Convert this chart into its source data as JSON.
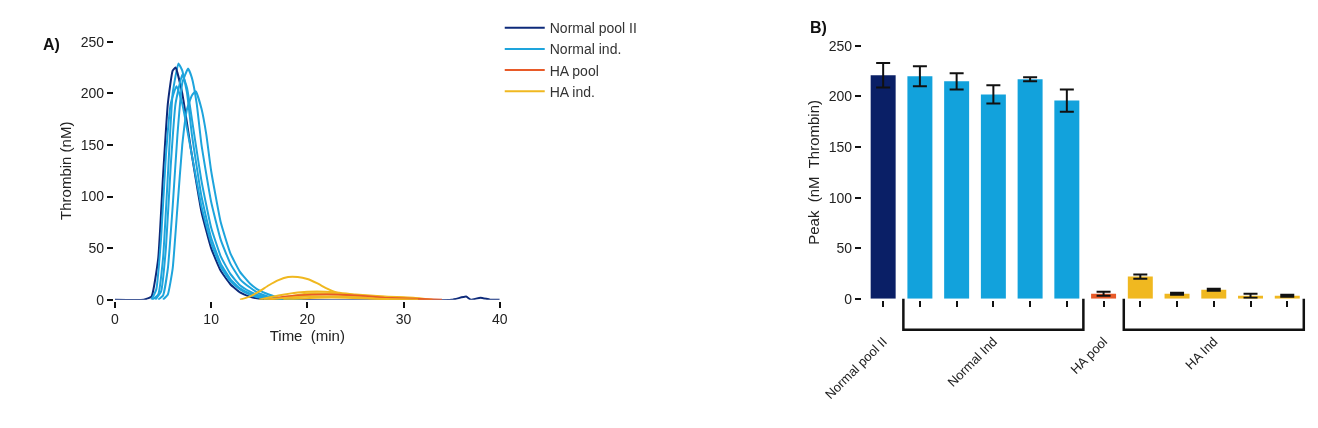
{
  "chart_data": [
    {
      "type": "line",
      "title": "A)",
      "xlabel": "Time  (min)",
      "ylabel": "Thrombin (nM)",
      "xlim": [
        0,
        40
      ],
      "xticks": [
        0,
        10,
        20,
        30,
        40
      ],
      "ylim": [
        0,
        250
      ],
      "yticks": [
        0,
        50,
        100,
        150,
        200,
        250
      ],
      "legend": "right",
      "series": [
        {
          "name": "Normal pool II",
          "color": "#0d2a7a",
          "x": [
            0,
            3,
            3.8,
            4.5,
            5,
            5.5,
            6,
            6.3,
            7,
            8,
            9,
            10,
            11,
            12,
            13,
            14,
            15,
            17,
            35,
            36.5,
            37,
            38,
            39,
            40
          ],
          "values": [
            0,
            0,
            3,
            40,
            120,
            190,
            222,
            225,
            200,
            140,
            85,
            50,
            28,
            15,
            7,
            3,
            1,
            0,
            0,
            3,
            0,
            2,
            0,
            0
          ]
        },
        {
          "name": "Normal ind.",
          "color": "#1ea4dc",
          "x": [
            3.9,
            4.5,
            5,
            5.5,
            6,
            6.6,
            7,
            7.5,
            8,
            9,
            10,
            11,
            12,
            13,
            14,
            15,
            16,
            18
          ],
          "values": [
            0,
            5,
            40,
            120,
            200,
            229,
            222,
            200,
            160,
            100,
            60,
            35,
            20,
            11,
            6,
            3,
            1,
            0
          ]
        },
        {
          "color": "#1ea4dc",
          "x": [
            4.5,
            5,
            5.5,
            6,
            6.5,
            7,
            7.6,
            8,
            8.5,
            9,
            10,
            11,
            12,
            13,
            14,
            15,
            16,
            17,
            19
          ],
          "values": [
            0,
            4,
            30,
            90,
            160,
            210,
            224,
            215,
            190,
            150,
            95,
            58,
            35,
            20,
            12,
            6,
            3,
            1,
            0
          ]
        },
        {
          "color": "#1ea4dc",
          "x": [
            5,
            5.5,
            6,
            6.5,
            7,
            7.5,
            8,
            8.4,
            9,
            9.5,
            10,
            11,
            12,
            13,
            14,
            15,
            16,
            17,
            19.5
          ],
          "values": [
            0,
            5,
            30,
            90,
            150,
            185,
            198,
            202,
            185,
            160,
            125,
            75,
            45,
            27,
            16,
            9,
            5,
            2,
            0
          ]
        },
        {
          "color": "#1ea4dc",
          "x": [
            4.2,
            4.8,
            5.3,
            5.8,
            6.3,
            7,
            7.5,
            8,
            9,
            10,
            11,
            12,
            13,
            14,
            15,
            16,
            17.5
          ],
          "values": [
            0,
            8,
            50,
            130,
            190,
            218,
            205,
            175,
            115,
            70,
            42,
            25,
            14,
            8,
            4,
            2,
            0
          ]
        },
        {
          "color": "#1ea4dc",
          "x": [
            3.8,
            4.3,
            4.8,
            5.3,
            5.8,
            6.4,
            7,
            8,
            9,
            10,
            11,
            12,
            13,
            14,
            15,
            16.5
          ],
          "values": [
            0,
            10,
            60,
            140,
            190,
            207,
            190,
            140,
            90,
            55,
            32,
            18,
            10,
            5,
            2,
            0
          ]
        },
        {
          "name": "HA pool",
          "color": "#e85a28",
          "x": [
            16,
            17,
            19,
            22,
            25,
            28,
            31,
            34
          ],
          "values": [
            0,
            2,
            4,
            5,
            4,
            2,
            1,
            0
          ]
        },
        {
          "name": "HA ind.",
          "color": "#f0b820",
          "x": [
            13,
            14,
            15,
            16,
            17,
            18,
            19,
            20,
            21,
            22,
            23,
            24,
            26,
            28,
            30.5
          ],
          "values": [
            0,
            3,
            8,
            14,
            19,
            22,
            22,
            20,
            16,
            11,
            7,
            4,
            2,
            1,
            0
          ]
        },
        {
          "color": "#f0b820",
          "x": [
            15,
            17,
            19,
            21,
            23,
            25,
            28,
            31,
            33
          ],
          "values": [
            0,
            4,
            7,
            8,
            7,
            5,
            3,
            2,
            0
          ]
        },
        {
          "color": "#f0b820",
          "x": [
            16,
            18,
            20,
            22,
            24,
            27,
            30,
            32
          ],
          "values": [
            0,
            3,
            6,
            6,
            5,
            3,
            2,
            0
          ]
        },
        {
          "color": "#f0b820",
          "x": [
            17.5,
            19,
            21,
            24,
            27,
            31.5
          ],
          "values": [
            0,
            1,
            2,
            2,
            1,
            0
          ]
        },
        {
          "color": "#f0b820",
          "x": [
            15.5,
            18,
            20,
            23,
            26,
            28.5
          ],
          "values": [
            0,
            2,
            3,
            3,
            2,
            0
          ]
        }
      ]
    },
    {
      "type": "bar",
      "title": "B)",
      "ylabel": "Peak  (nM  Thrombin)",
      "ylim": [
        0,
        250
      ],
      "yticks": [
        0,
        50,
        100,
        150,
        200,
        250
      ],
      "categories": [
        "Normal pool II",
        null,
        null,
        "Normal Ind",
        null,
        null,
        "HA pool",
        null,
        null,
        "HA Ind",
        null,
        null
      ],
      "values": [
        221,
        220,
        215,
        202,
        217,
        196,
        5,
        22,
        5,
        9,
        3,
        3
      ],
      "errors": [
        12,
        10,
        8,
        9,
        2,
        11,
        2,
        2,
        1,
        1,
        2,
        1
      ],
      "colors": [
        "#0a1f66",
        "#12a2dc",
        "#12a2dc",
        "#12a2dc",
        "#12a2dc",
        "#12a2dc",
        "#e85a28",
        "#f0b820",
        "#f0b820",
        "#f0b820",
        "#f0b820",
        "#f0b820"
      ]
    }
  ]
}
